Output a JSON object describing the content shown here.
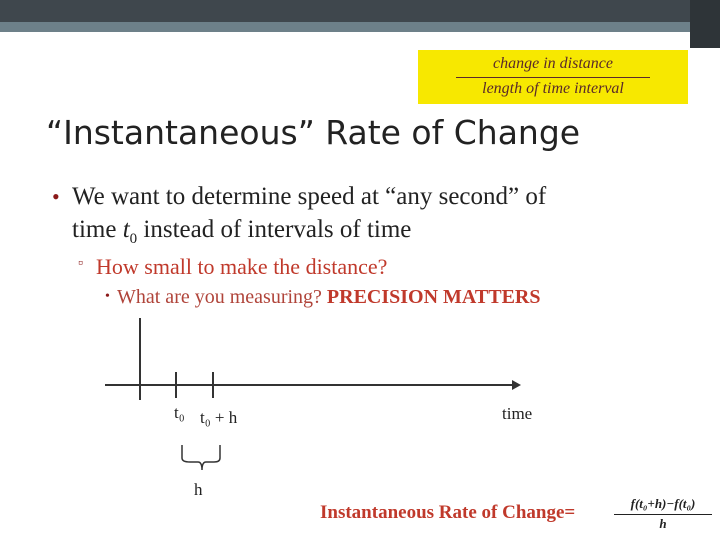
{
  "header": {
    "definition_numerator": "change in distance",
    "definition_denominator": "length of time interval",
    "title": "“Instantaneous” Rate of Change"
  },
  "bullets": {
    "bullet_1_line_1": "We want to determine speed at “any second” of",
    "bullet_1_line_2_before": "time",
    "bullet_1_variable": "t",
    "bullet_1_subscript": "0",
    "bullet_1_line_2_after": "instead of intervals of time",
    "bullet_2": "How small to make the distance?",
    "bullet_3_question": "What are you measuring?",
    "bullet_3_emphasis": "PRECISION MATTERS"
  },
  "diagram": {
    "t0_label": "t₀",
    "t0_plus_h_label": "t₀ + h",
    "axis_label": "time",
    "interval_label": "h"
  },
  "formula": {
    "label": "Instantaneous Rate of Change=",
    "numerator": "f(t₀+h)−f(t₀)",
    "denominator": "h"
  }
}
